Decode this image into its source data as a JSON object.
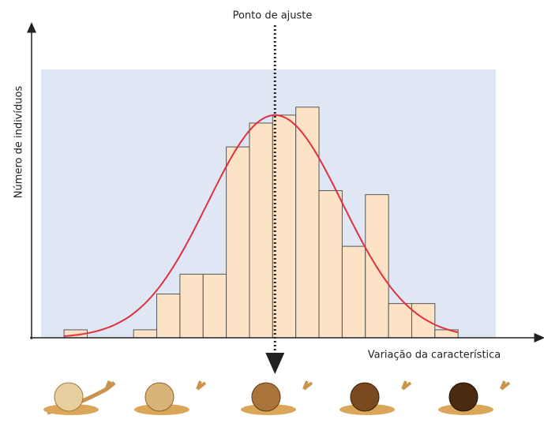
{
  "chart_data": {
    "type": "histogram",
    "title": "Ponto de ajuste",
    "x_label": "Variação da característica",
    "y_label": "Número de indivíduos",
    "bins": [
      0,
      1,
      2,
      3,
      4,
      5,
      6,
      7,
      8,
      9,
      10,
      11,
      12,
      13,
      14,
      15,
      16,
      17
    ],
    "values": [
      1,
      0,
      0,
      1,
      5.5,
      8,
      8,
      24,
      27,
      28,
      29,
      18.5,
      11.5,
      18,
      4.3,
      4.3,
      1
    ],
    "color": "#fde3c6",
    "fit": {
      "mean": 9.1,
      "sd": 2.9,
      "peak": 28,
      "color": "#e0303f"
    },
    "marker": 9.1,
    "xlim": [
      -1.4,
      20.4
    ],
    "ylim": [
      0,
      39
    ]
  }
}
